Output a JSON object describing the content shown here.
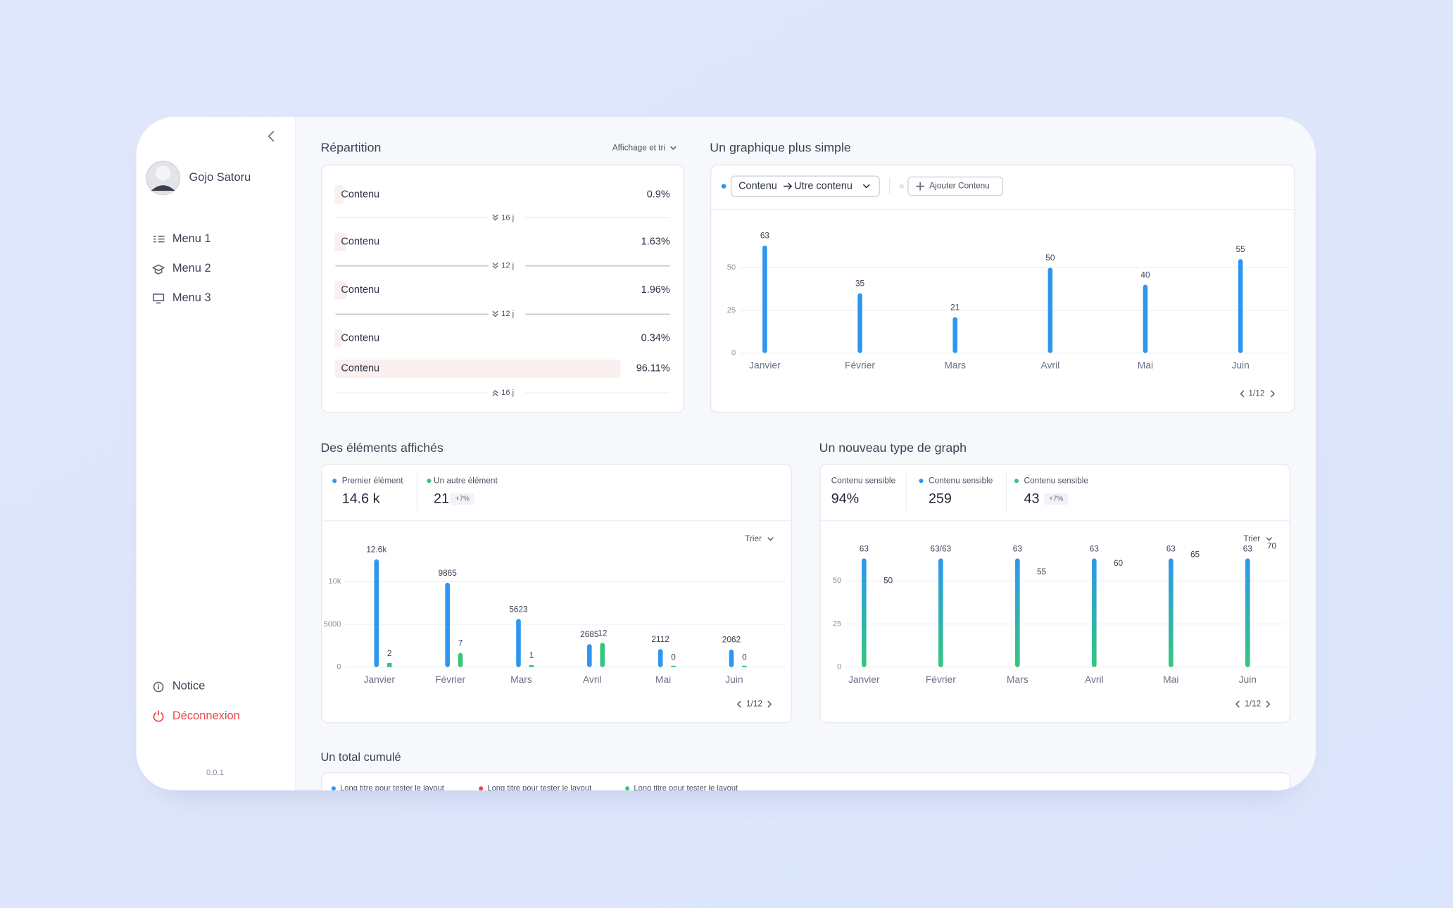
{
  "sidebar": {
    "user_name": "Gojo Satoru",
    "menu": [
      "Menu 1",
      "Menu 2",
      "Menu 3"
    ],
    "notice": "Notice",
    "logout": "Déconnexion",
    "version": "0.0.1"
  },
  "repartition": {
    "title": "Répartition",
    "sort_label": "Affichage et tri",
    "labels": [
      "Contenu",
      "Contenu",
      "Contenu",
      "Contenu",
      "Contenu"
    ],
    "values": [
      0.9,
      1.63,
      1.96,
      0.34,
      96.11
    ],
    "value_labels": [
      "0.9%",
      "1.63%",
      "1.96%",
      "0.34%",
      "96.11%"
    ],
    "gaps": [
      "16 j",
      "12 j",
      "12 j",
      "16 j"
    ]
  },
  "chart_data": [
    {
      "type": "bar",
      "title": "Un graphique plus simple",
      "selector": {
        "from": "Contenu",
        "to": "Utre contenu"
      },
      "add_button": "Ajouter Contenu",
      "categories": [
        "Janvier",
        "Février",
        "Mars",
        "Avril",
        "Mai",
        "Juin"
      ],
      "values": [
        63,
        35,
        21,
        50,
        40,
        55
      ],
      "color": "#2f96ef",
      "ylim": [
        0,
        70
      ],
      "yticks": [
        0,
        25,
        50
      ],
      "grid": true,
      "pagination": "1/12"
    },
    {
      "type": "bar",
      "title": "Des éléments affichés",
      "stats": [
        {
          "value": "14.6 k"
        },
        {
          "value": "21",
          "badge": "+7%"
        }
      ],
      "sort_label": "Trier",
      "categories": [
        "Janvier",
        "Février",
        "Mars",
        "Avril",
        "Mai",
        "Juin"
      ],
      "series": [
        {
          "name": "Premier élément",
          "color": "#2f96ef",
          "values": [
            12600,
            9865,
            5623,
            2685,
            2112,
            2062
          ],
          "value_labels": [
            "12.6k",
            "9865",
            "5623",
            "2685",
            "2112",
            "2062"
          ]
        },
        {
          "name": "Un autre élément",
          "color": "#34c77b",
          "values": [
            2,
            7,
            1,
            12,
            0,
            0
          ],
          "axis": "y2"
        }
      ],
      "ylim": [
        0,
        13000
      ],
      "yticks": [
        0,
        5000,
        {
          "value": 10000,
          "label": "10k"
        }
      ],
      "y2lim": [
        0,
        55
      ],
      "grid": true,
      "pagination": "1/12"
    },
    {
      "type": "bar",
      "title": "Un nouveau type de graph",
      "stats": [
        {
          "label": "Contenu sensible",
          "value": "94%"
        },
        {
          "label": "Contenu sensible",
          "value": "259",
          "color": "#2f96ef"
        },
        {
          "label": "Contenu sensible",
          "value": "43",
          "badge": "+7%",
          "color": "#34c77b"
        }
      ],
      "sort_label": "Trier",
      "categories": [
        "Janvier",
        "Février",
        "Mars",
        "Avril",
        "Mai",
        "Juin"
      ],
      "series": [
        {
          "colors": [
            "#2f96ef",
            "#34c77b"
          ],
          "values": [
            63,
            63,
            63,
            63,
            63,
            63
          ],
          "value_labels": [
            "63",
            "63/63",
            "63",
            "63",
            "63",
            "63"
          ]
        },
        {
          "values": [
            50,
            null,
            55,
            60,
            65,
            70
          ]
        }
      ],
      "ylim": [
        0,
        65
      ],
      "yticks": [
        0,
        25,
        50
      ],
      "grid": true,
      "pagination": "1/12"
    }
  ],
  "cumulative": {
    "title": "Un total cumulé",
    "legend": [
      {
        "name": "Long titre pour tester le layout",
        "color": "#2f96ef"
      },
      {
        "name": "Long titre pour tester le layout",
        "color": "#e5484d"
      },
      {
        "name": "Long titre pour tester le layout",
        "color": "#34c77b"
      }
    ]
  }
}
